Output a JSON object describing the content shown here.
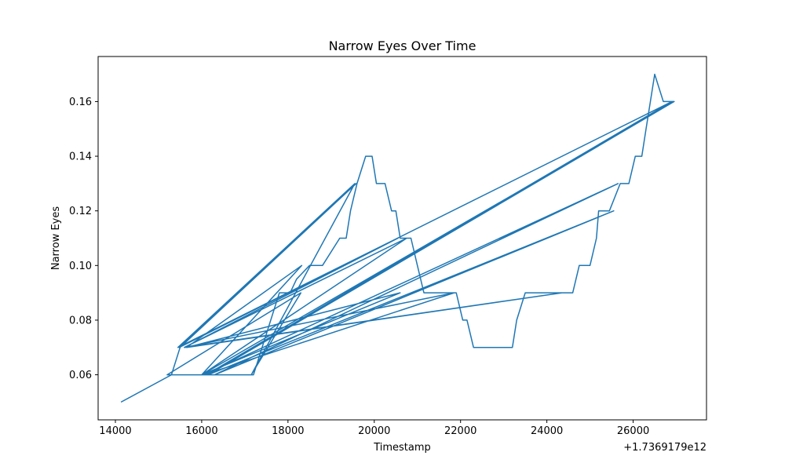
{
  "chart_data": {
    "type": "line",
    "title": "Narrow Eyes Over Time",
    "xlabel": "Timestamp",
    "ylabel": "Narrow Eyes",
    "x_offset_label": "+1.7369179e12",
    "xlim": [
      13600,
      27700
    ],
    "ylim": [
      0.0435,
      0.1765
    ],
    "x_ticks": [
      14000,
      16000,
      18000,
      20000,
      22000,
      24000,
      26000
    ],
    "x_tick_labels": [
      "14000",
      "16000",
      "18000",
      "20000",
      "22000",
      "24000",
      "26000"
    ],
    "y_ticks": [
      0.06,
      0.08,
      0.1,
      0.12,
      0.14,
      0.16
    ],
    "y_tick_labels": [
      "0.06",
      "0.08",
      "0.10",
      "0.12",
      "0.14",
      "0.16"
    ],
    "grid": false,
    "line_color": "#1f77b4",
    "series": [
      {
        "x": [
          14130,
          15300,
          15500,
          19580,
          15480,
          20550,
          15600,
          20750,
          16000,
          20600,
          15650,
          18320,
          16000,
          26950,
          16100,
          26900,
          15450,
          19550,
          17150,
          18300,
          15200,
          17200,
          17400,
          17800,
          18050,
          18200,
          18500,
          18800,
          19200,
          19350,
          19450,
          19600,
          19800,
          19950,
          20050,
          20250,
          20400,
          20500,
          20600,
          20850,
          21000,
          21150,
          21350,
          21800,
          21900,
          22050,
          22150,
          22300,
          23200,
          23300,
          23500,
          24600,
          24750,
          25000,
          25150,
          25200,
          25300,
          25350,
          25450,
          25700,
          25900,
          26050,
          26200,
          26300,
          26500,
          26700,
          26950,
          16150,
          25550,
          16300,
          25650,
          16050,
          21850,
          15600,
          24350,
          15650
        ],
        "y": [
          0.05,
          0.06,
          0.07,
          0.13,
          0.07,
          0.11,
          0.07,
          0.11,
          0.06,
          0.09,
          0.07,
          0.1,
          0.06,
          0.16,
          0.06,
          0.16,
          0.07,
          0.13,
          0.06,
          0.09,
          0.06,
          0.06,
          0.07,
          0.09,
          0.09,
          0.095,
          0.1,
          0.1,
          0.11,
          0.11,
          0.12,
          0.13,
          0.14,
          0.14,
          0.13,
          0.13,
          0.12,
          0.12,
          0.11,
          0.11,
          0.1,
          0.09,
          0.09,
          0.09,
          0.09,
          0.08,
          0.08,
          0.07,
          0.07,
          0.08,
          0.09,
          0.09,
          0.1,
          0.1,
          0.11,
          0.12,
          0.12,
          0.12,
          0.12,
          0.13,
          0.13,
          0.14,
          0.14,
          0.15,
          0.17,
          0.16,
          0.16,
          0.06,
          0.12,
          0.06,
          0.13,
          0.06,
          0.09,
          0.07,
          0.09,
          0.07
        ]
      }
    ]
  }
}
